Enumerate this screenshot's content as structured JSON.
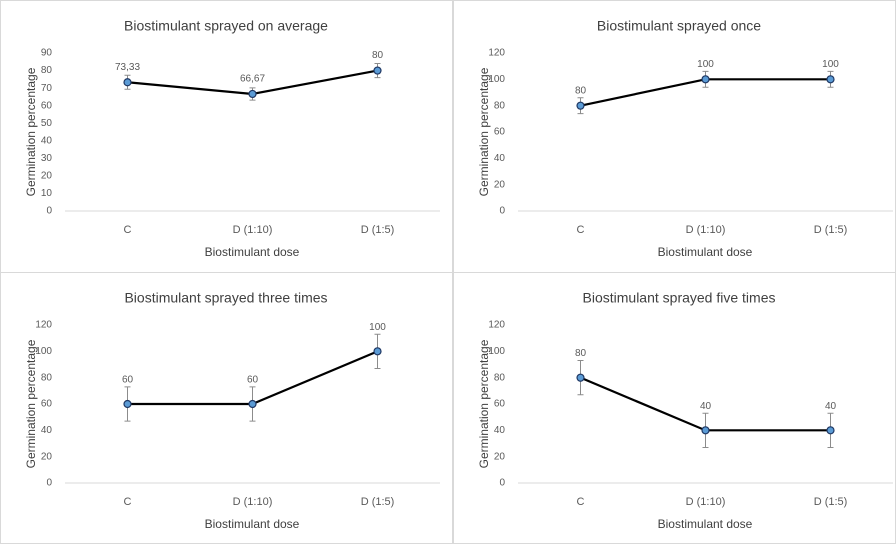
{
  "chart_data": [
    {
      "type": "line",
      "title": "Biostimulant sprayed on average",
      "xlabel": "Biostimulant dose",
      "ylabel": "Germination percentage",
      "categories": [
        "C",
        "D (1:10)",
        "D (1:5)"
      ],
      "values": [
        73.33,
        66.67,
        80
      ],
      "value_labels": [
        "73,33",
        "66,67",
        "80"
      ],
      "errors": [
        4,
        3.5,
        4
      ],
      "ylim": [
        0,
        90
      ],
      "yticks": [
        0,
        10,
        20,
        30,
        40,
        50,
        60,
        70,
        80,
        90
      ],
      "grid": false,
      "color": "#000000",
      "marker_color": "#5b9bd5"
    },
    {
      "type": "line",
      "title": "Biostimulant sprayed once",
      "xlabel": "Biostimulant dose",
      "ylabel": "Germination percentage",
      "categories": [
        "C",
        "D (1:10)",
        "D (1:5)"
      ],
      "values": [
        80,
        100,
        100
      ],
      "errors": [
        6,
        6,
        6
      ],
      "ylim": [
        0,
        120
      ],
      "yticks": [
        0,
        20,
        40,
        60,
        80,
        100,
        120
      ],
      "grid": false,
      "color": "#000000",
      "marker_color": "#5b9bd5"
    },
    {
      "type": "line",
      "title": "Biostimulant sprayed three times",
      "xlabel": "Biostimulant dose",
      "ylabel": "Germination percentage",
      "categories": [
        "C",
        "D (1:10)",
        "D (1:5)"
      ],
      "values": [
        60,
        60,
        100
      ],
      "errors": [
        13,
        13,
        13
      ],
      "ylim": [
        0,
        120
      ],
      "yticks": [
        0,
        20,
        40,
        60,
        80,
        100,
        120
      ],
      "grid": false,
      "color": "#000000",
      "marker_color": "#5b9bd5"
    },
    {
      "type": "line",
      "title": "Biostimulant sprayed five times",
      "xlabel": "Biostimulant dose",
      "ylabel": "Germination percentage",
      "categories": [
        "C",
        "D (1:10)",
        "D (1:5)"
      ],
      "values": [
        80,
        40,
        40
      ],
      "errors": [
        13,
        13,
        13
      ],
      "ylim": [
        0,
        120
      ],
      "yticks": [
        0,
        20,
        40,
        60,
        80,
        100,
        120
      ],
      "grid": false,
      "color": "#000000",
      "marker_color": "#5b9bd5"
    }
  ]
}
